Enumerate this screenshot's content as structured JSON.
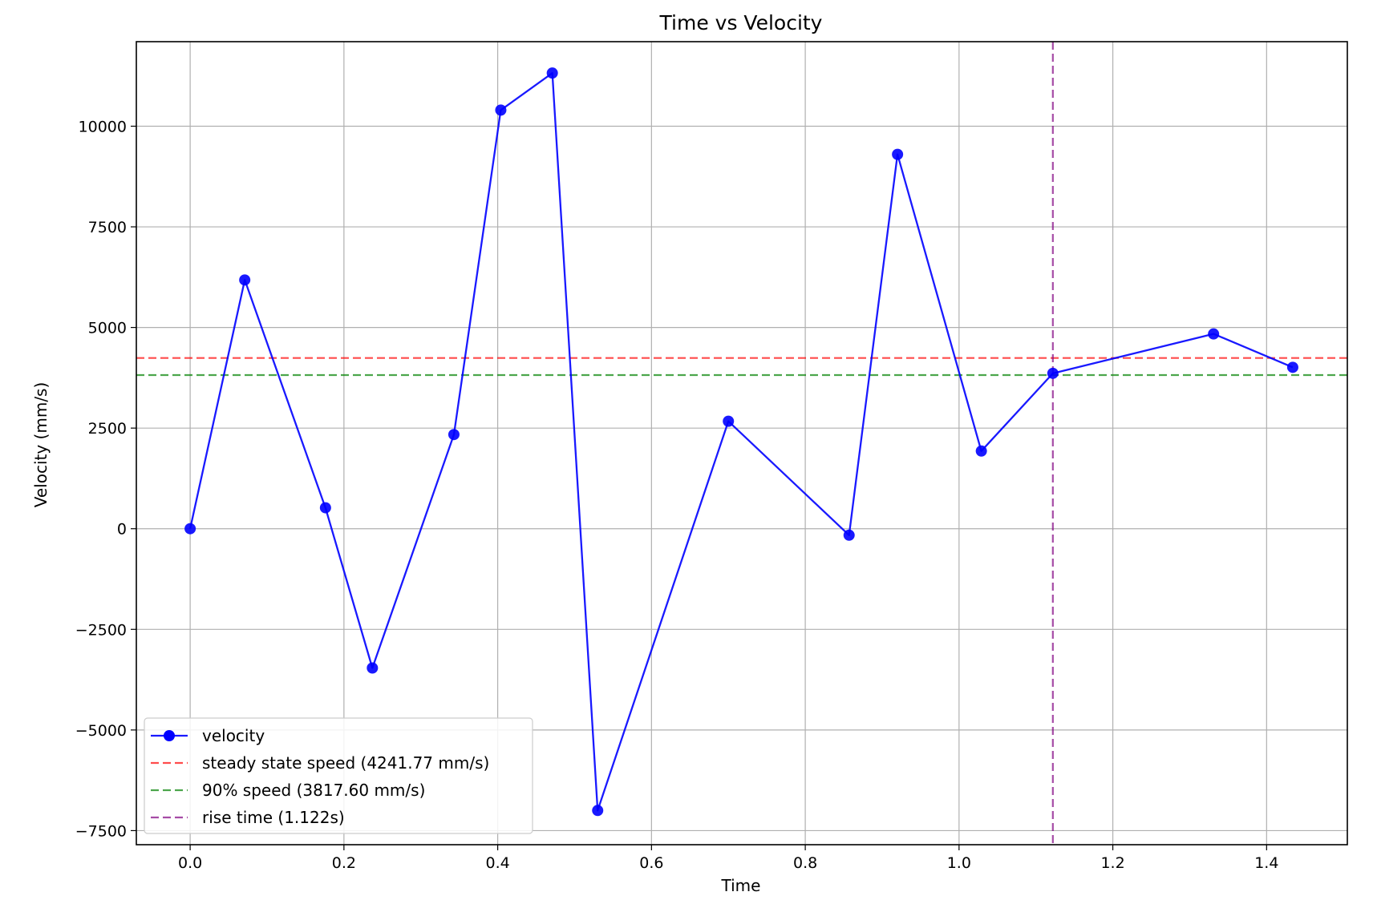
{
  "chart_data": {
    "type": "line",
    "title": "Time vs Velocity",
    "xlabel": "Time",
    "ylabel": "Velocity (mm/s)",
    "xlim": [
      -0.07,
      1.505
    ],
    "ylim": [
      -7850,
      12100
    ],
    "xticks": [
      0.0,
      0.2,
      0.4,
      0.6,
      0.8,
      1.0,
      1.2,
      1.4
    ],
    "xtick_labels": [
      "0.0",
      "0.2",
      "0.4",
      "0.6",
      "0.8",
      "1.0",
      "1.2",
      "1.4"
    ],
    "yticks": [
      -7500,
      -5000,
      -2500,
      0,
      2500,
      5000,
      7500,
      10000
    ],
    "ytick_labels": [
      "−7500",
      "−5000",
      "−2500",
      "0",
      "2500",
      "5000",
      "7500",
      "10000"
    ],
    "grid": true,
    "legend_position": "lower-left",
    "series": [
      {
        "name": "velocity",
        "color": "#0000ff",
        "marker": "circle",
        "x": [
          0.0,
          0.071,
          0.176,
          0.237,
          0.343,
          0.404,
          0.471,
          0.53,
          0.7,
          0.857,
          0.92,
          1.029,
          1.122,
          1.331,
          1.434
        ],
        "y": [
          0,
          6180,
          520,
          -3460,
          2340,
          10400,
          11320,
          -7000,
          2670,
          -160,
          9300,
          1930,
          3860,
          4840,
          4010
        ]
      }
    ],
    "reference_lines": [
      {
        "name": "steady state speed (4241.77 mm/s)",
        "orientation": "horizontal",
        "value": 4241.77,
        "color": "#ff0000",
        "style": "dashed"
      },
      {
        "name": "90% speed (3817.60 mm/s)",
        "orientation": "horizontal",
        "value": 3817.6,
        "color": "#008000",
        "style": "dashed"
      },
      {
        "name": "rise time (1.122s)",
        "orientation": "vertical",
        "value": 1.122,
        "color": "#800080",
        "style": "dashed"
      }
    ]
  }
}
